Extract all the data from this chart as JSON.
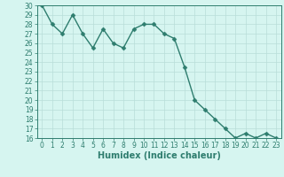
{
  "x": [
    0,
    1,
    2,
    3,
    4,
    5,
    6,
    7,
    8,
    9,
    10,
    11,
    12,
    13,
    14,
    15,
    16,
    17,
    18,
    19,
    20,
    21,
    22,
    23
  ],
  "y": [
    30,
    28,
    27,
    29,
    27,
    25.5,
    27.5,
    26,
    25.5,
    27.5,
    28,
    28,
    27,
    26.5,
    23.5,
    20,
    19,
    18,
    17,
    16,
    16.5,
    16,
    16.5,
    16
  ],
  "line_color": "#2e7d6e",
  "marker_color": "#2e7d6e",
  "bg_color": "#d6f5f0",
  "grid_color": "#b8ddd8",
  "xlabel": "Humidex (Indice chaleur)",
  "xlim": [
    -0.5,
    23.5
  ],
  "ylim": [
    16,
    30
  ],
  "yticks": [
    16,
    17,
    18,
    19,
    20,
    21,
    22,
    23,
    24,
    25,
    26,
    27,
    28,
    29,
    30
  ],
  "xticks": [
    0,
    1,
    2,
    3,
    4,
    5,
    6,
    7,
    8,
    9,
    10,
    11,
    12,
    13,
    14,
    15,
    16,
    17,
    18,
    19,
    20,
    21,
    22,
    23
  ],
  "tick_fontsize": 5.5,
  "xlabel_fontsize": 7.0,
  "marker_size": 2.5,
  "line_width": 1.0
}
